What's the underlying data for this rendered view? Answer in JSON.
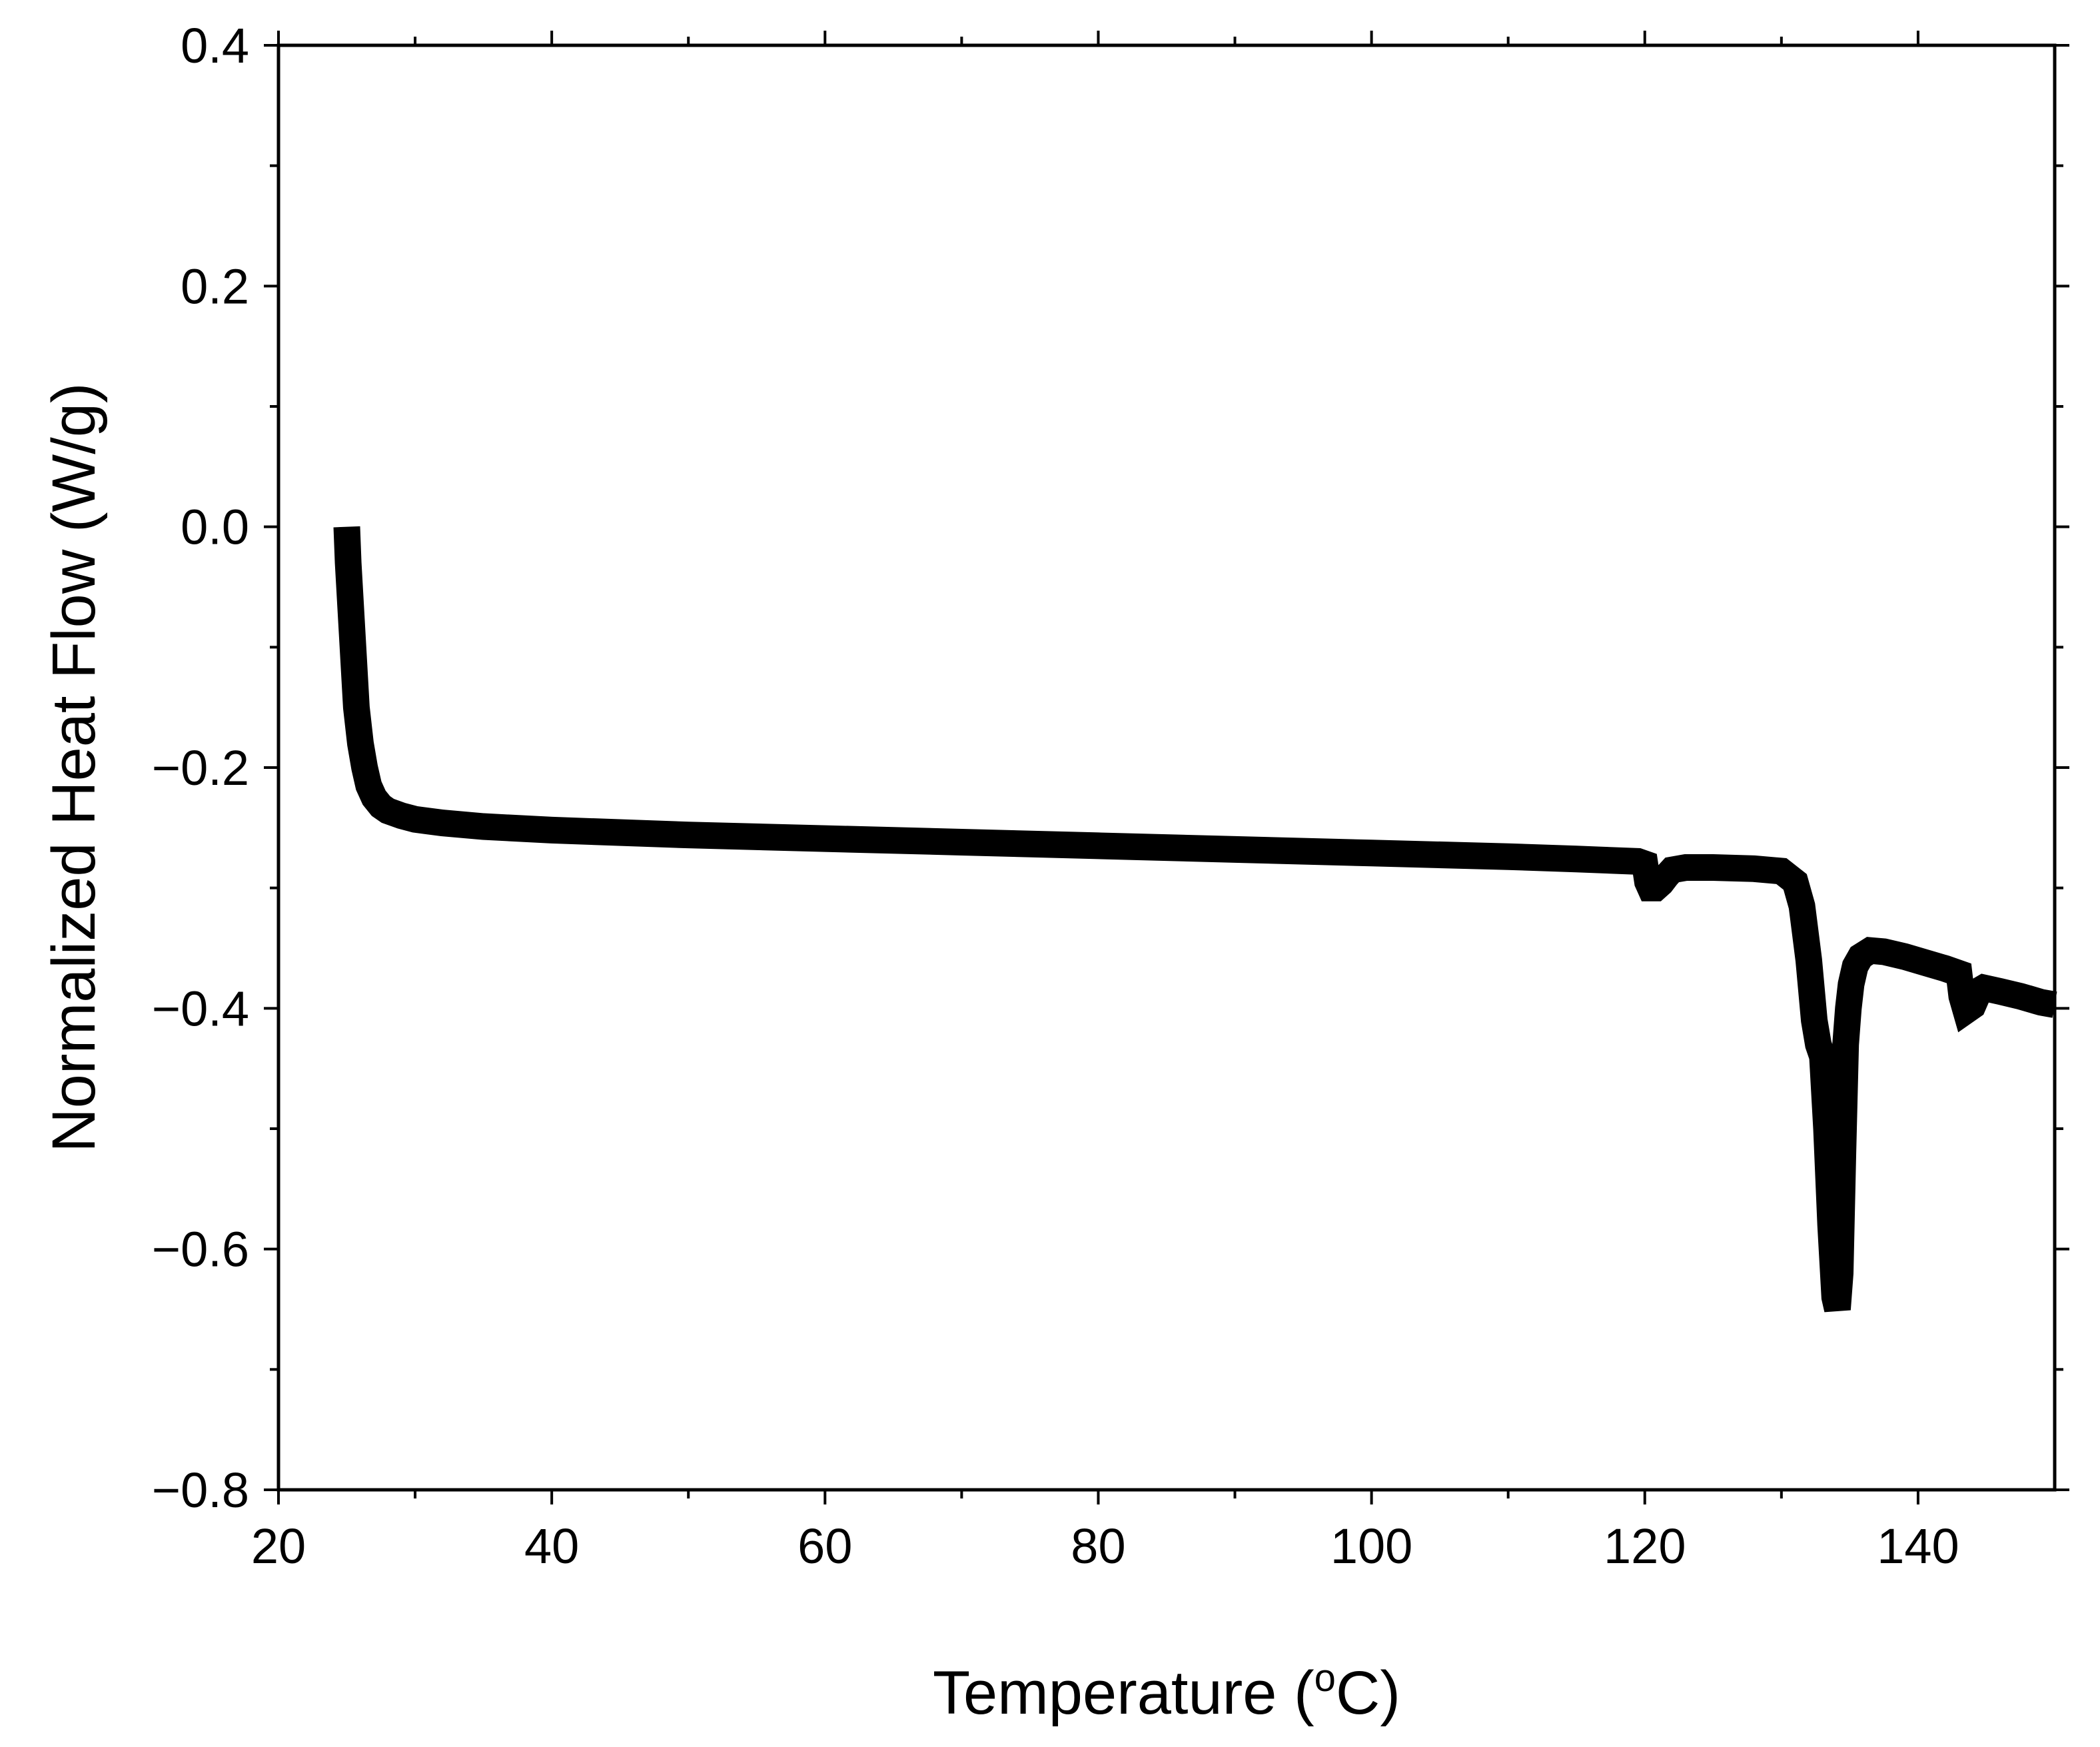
{
  "chart_data": {
    "type": "line",
    "title": "",
    "xlabel": "Temperature (",
    "xlabel_sup": "o",
    "xlabel_end": "C)",
    "ylabel": "Normalized Heat Flow (W/g)",
    "xlim": [
      20,
      150
    ],
    "ylim": [
      -0.8,
      0.4
    ],
    "x_ticks": [
      20,
      40,
      60,
      80,
      100,
      120,
      140
    ],
    "x_tick_labels": [
      "20",
      "40",
      "60",
      "80",
      "100",
      "120",
      "140"
    ],
    "y_ticks": [
      -0.8,
      -0.6,
      -0.4,
      -0.2,
      0.0,
      0.2,
      0.4
    ],
    "y_tick_labels": [
      "−0.8",
      "−0.6",
      "−0.4",
      "−0.2",
      "0.0",
      "0.2",
      "0.4"
    ],
    "grid": false,
    "legend": "none",
    "line_color": "#000000",
    "series": [
      {
        "x": [
          25.0,
          25.1,
          25.3,
          25.5,
          25.7,
          26.0,
          26.3,
          26.6,
          27.0,
          27.5,
          28.0,
          29.0,
          30.0,
          32.0,
          35.0,
          40.0,
          50.0,
          60.0,
          70.0,
          80.0,
          90.0,
          100.0,
          110.0,
          115.0,
          119.5,
          120.0,
          120.2,
          120.4,
          120.8,
          121.2,
          121.6,
          122.0,
          123.0,
          125.0,
          128.0,
          130.0,
          131.0,
          131.5,
          132.0,
          132.4,
          132.7,
          133.0,
          133.3,
          133.6,
          133.9,
          134.1,
          134.3,
          134.5,
          134.7,
          134.9,
          135.1,
          135.4,
          135.8,
          136.5,
          137.5,
          139.0,
          140.5,
          142.0,
          143.0,
          143.2,
          143.5,
          144.0,
          144.5,
          144.8,
          145.2,
          146.0,
          147.5,
          149.0,
          150.0
        ],
        "y": [
          0.0,
          -0.03,
          -0.07,
          -0.11,
          -0.15,
          -0.18,
          -0.2,
          -0.215,
          -0.225,
          -0.232,
          -0.236,
          -0.24,
          -0.243,
          -0.246,
          -0.249,
          -0.252,
          -0.256,
          -0.259,
          -0.262,
          -0.265,
          -0.268,
          -0.271,
          -0.274,
          -0.276,
          -0.278,
          -0.28,
          -0.295,
          -0.3,
          -0.3,
          -0.296,
          -0.29,
          -0.285,
          -0.283,
          -0.283,
          -0.284,
          -0.286,
          -0.295,
          -0.315,
          -0.36,
          -0.41,
          -0.43,
          -0.44,
          -0.5,
          -0.58,
          -0.64,
          -0.65,
          -0.62,
          -0.52,
          -0.43,
          -0.4,
          -0.38,
          -0.365,
          -0.357,
          -0.352,
          -0.353,
          -0.357,
          -0.362,
          -0.367,
          -0.371,
          -0.39,
          -0.402,
          -0.398,
          -0.385,
          -0.383,
          -0.384,
          -0.386,
          -0.39,
          -0.395,
          -0.397
        ]
      }
    ]
  }
}
